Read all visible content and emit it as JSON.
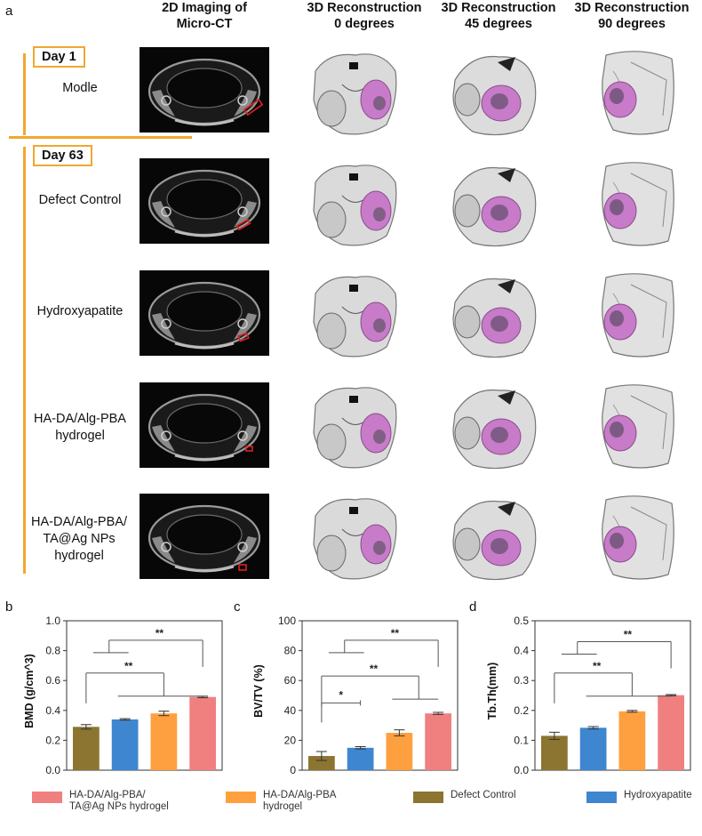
{
  "panel_a": {
    "letter": "a",
    "column_headers": [
      {
        "line1": "2D Imaging of",
        "line2": "Micro-CT"
      },
      {
        "line1": "3D Reconstruction",
        "line2": "0 degrees"
      },
      {
        "line1": "3D Reconstruction",
        "line2": "45 degrees"
      },
      {
        "line1": "3D Reconstruction",
        "line2": "90 degrees"
      }
    ],
    "days": [
      "Day 1",
      "Day 63"
    ],
    "rows": [
      {
        "line1": "Modle",
        "line2": ""
      },
      {
        "line1": "Defect Control",
        "line2": ""
      },
      {
        "line1": "Hydroxyapatite",
        "line2": ""
      },
      {
        "line1": "HA-DA/Alg-PBA",
        "line2": "hydrogel"
      },
      {
        "line1": "HA-DA/Alg-PBA/",
        "line2": "TA@Ag NPs",
        "line3": "hydrogel"
      }
    ],
    "colors": {
      "accent": "#f0a830",
      "defect_marker": "#e02020",
      "defect_fill": "#c77bc8",
      "bone": "#d9d9d9"
    }
  },
  "chart_data": [
    {
      "type": "bar",
      "letter": "b",
      "ylabel": "BMD (g/cm^3)",
      "categories": [
        "Defect Control",
        "Hydroxyapatite",
        "HA-DA/Alg-PBA hydrogel",
        "HA-DA/Alg-PBA/TA@Ag NPs hydrogel"
      ],
      "values": [
        0.29,
        0.34,
        0.38,
        0.49
      ],
      "errors": [
        0.015,
        0.005,
        0.015,
        0.005
      ],
      "ylim": [
        0,
        1.0
      ],
      "ticks": [
        "0.0",
        "0.2",
        "0.4",
        "0.6",
        "0.8",
        "1.0"
      ],
      "tick_values": [
        0,
        0.2,
        0.4,
        0.6,
        0.8,
        1.0
      ],
      "significance": [
        {
          "label": "**",
          "type": "group_vs_last",
          "from": [
            0,
            1
          ],
          "to": 3,
          "y": 0.87
        },
        {
          "label": "**",
          "type": "first_vs_group",
          "from": 0,
          "to": [
            1,
            2,
            3
          ],
          "y": 0.65
        }
      ]
    },
    {
      "type": "bar",
      "letter": "c",
      "ylabel": "BV/TV (%)",
      "categories": [
        "Defect Control",
        "Hydroxyapatite",
        "HA-DA/Alg-PBA hydrogel",
        "HA-DA/Alg-PBA/TA@Ag NPs hydrogel"
      ],
      "values": [
        9.5,
        15,
        25,
        38
      ],
      "errors": [
        3,
        0.8,
        2,
        0.7
      ],
      "ylim": [
        0,
        100
      ],
      "ticks": [
        "0",
        "20",
        "40",
        "60",
        "80",
        "100"
      ],
      "tick_values": [
        0,
        20,
        40,
        60,
        80,
        100
      ],
      "significance": [
        {
          "label": "**",
          "type": "group_vs_last",
          "from": [
            0,
            1
          ],
          "to": 3,
          "y": 87
        },
        {
          "label": "**",
          "type": "first_vs_group",
          "from": 0,
          "to": [
            2,
            3
          ],
          "y": 63
        },
        {
          "label": "*",
          "type": "pair",
          "from": 0,
          "to": 1,
          "y": 45
        }
      ]
    },
    {
      "type": "bar",
      "letter": "d",
      "ylabel": "Tb.Th(mm)",
      "categories": [
        "Defect Control",
        "Hydroxyapatite",
        "HA-DA/Alg-PBA hydrogel",
        "HA-DA/Alg-PBA/TA@Ag NPs hydrogel"
      ],
      "values": [
        0.115,
        0.142,
        0.197,
        0.251
      ],
      "errors": [
        0.012,
        0.004,
        0.003,
        0.002
      ],
      "ylim": [
        0,
        0.5
      ],
      "ticks": [
        "0.0",
        "0.1",
        "0.2",
        "0.3",
        "0.4",
        "0.5"
      ],
      "tick_values": [
        0,
        0.1,
        0.2,
        0.3,
        0.4,
        0.5
      ],
      "significance": [
        {
          "label": "**",
          "type": "group_vs_last",
          "from": [
            0,
            1
          ],
          "to": 3,
          "y": 0.43
        },
        {
          "label": "**",
          "type": "first_vs_group",
          "from": 0,
          "to": [
            1,
            2,
            3
          ],
          "y": 0.325
        }
      ]
    }
  ],
  "legend": [
    {
      "line1": "HA-DA/Alg-PBA/",
      "line2": "TA@Ag NPs hydrogel",
      "color": "#f08080"
    },
    {
      "line1": "HA-DA/Alg-PBA",
      "line2": "hydrogel",
      "color": "#ffa040"
    },
    {
      "line1": "Defect Control",
      "line2": "",
      "color": "#8b7530"
    },
    {
      "line1": "Hydroxyapatite",
      "line2": "",
      "color": "#3f86d0"
    }
  ],
  "series_colors": [
    "#8b7530",
    "#3f86d0",
    "#ffa040",
    "#f08080"
  ]
}
